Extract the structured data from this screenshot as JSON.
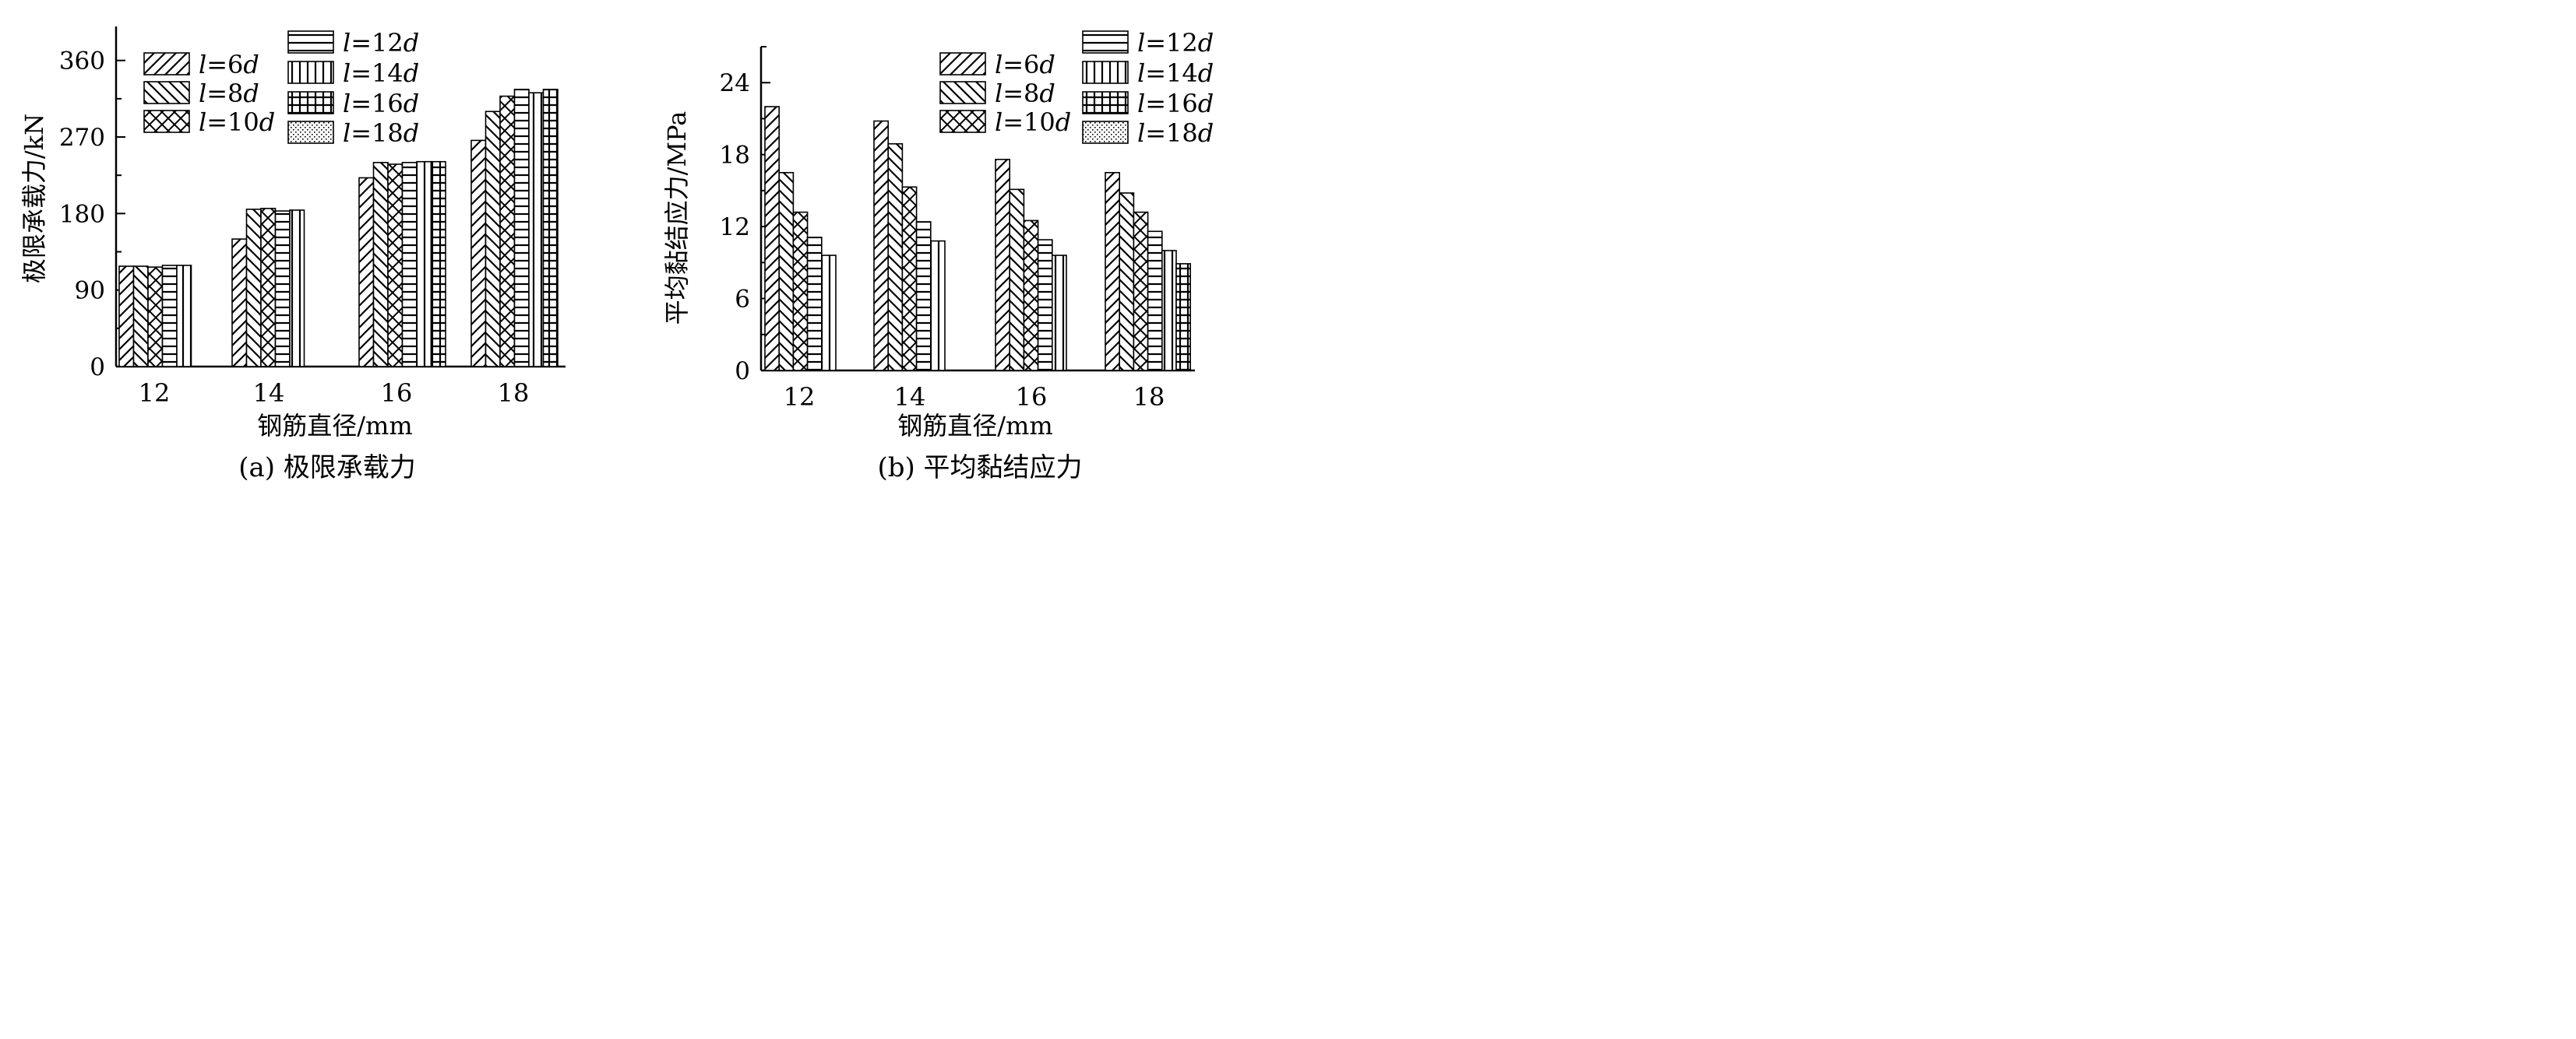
{
  "panels": [
    {
      "caption": "(a) 极限承载力",
      "chart_data": {
        "type": "bar",
        "categories": [
          "12",
          "14",
          "16",
          "18"
        ],
        "ylabel": "极限承载力/kN",
        "xlabel": "钢筋直径/mm",
        "ylim": [
          0,
          400
        ],
        "yticks": [
          0,
          90,
          180,
          270,
          360
        ],
        "grid": false,
        "legend_position": "top-left",
        "series": [
          {
            "name_l": "l",
            "name_rest": "=6",
            "name_d": "d",
            "pattern": "diag-right",
            "values": [
              118,
              150,
              222,
              266
            ]
          },
          {
            "name_l": "l",
            "name_rest": "=8",
            "name_d": "d",
            "pattern": "diag-left",
            "values": [
              118,
              185,
              240,
              300
            ]
          },
          {
            "name_l": "l",
            "name_rest": "=10",
            "name_d": "d",
            "pattern": "crosshatch",
            "values": [
              117,
              186,
              238,
              318
            ]
          },
          {
            "name_l": "l",
            "name_rest": "=12",
            "name_d": "d",
            "pattern": "horizontal",
            "values": [
              119,
              183,
              240,
              326
            ]
          },
          {
            "name_l": "l",
            "name_rest": "=14",
            "name_d": "d",
            "pattern": "vertical",
            "values": [
              119,
              184,
              241,
              322
            ]
          },
          {
            "name_l": "l",
            "name_rest": "=16",
            "name_d": "d",
            "pattern": "grid",
            "values": [
              null,
              null,
              241,
              326
            ]
          },
          {
            "name_l": "l",
            "name_rest": "=18",
            "name_d": "d",
            "pattern": "dots",
            "values": [
              null,
              null,
              null,
              null
            ]
          }
        ]
      }
    },
    {
      "caption": "(b) 平均黏结应力",
      "chart_data": {
        "type": "bar",
        "categories": [
          "12",
          "14",
          "16",
          "18"
        ],
        "ylabel": "平均黏结应力/MPa",
        "xlabel": "钢筋直径/mm",
        "ylim": [
          0,
          27
        ],
        "yticks": [
          0,
          6,
          12,
          18,
          24
        ],
        "grid": false,
        "legend_position": "top-right",
        "series": [
          {
            "name_l": "l",
            "name_rest": "=6",
            "name_d": "d",
            "pattern": "diag-right",
            "values": [
              22.0,
              20.8,
              17.6,
              16.5
            ]
          },
          {
            "name_l": "l",
            "name_rest": "=8",
            "name_d": "d",
            "pattern": "diag-left",
            "values": [
              16.5,
              18.9,
              15.1,
              14.8
            ]
          },
          {
            "name_l": "l",
            "name_rest": "=10",
            "name_d": "d",
            "pattern": "crosshatch",
            "values": [
              13.2,
              15.3,
              12.5,
              13.2
            ]
          },
          {
            "name_l": "l",
            "name_rest": "=12",
            "name_d": "d",
            "pattern": "horizontal",
            "values": [
              11.1,
              12.4,
              10.9,
              11.6
            ]
          },
          {
            "name_l": "l",
            "name_rest": "=14",
            "name_d": "d",
            "pattern": "vertical",
            "values": [
              9.6,
              10.8,
              9.6,
              10.0
            ]
          },
          {
            "name_l": "l",
            "name_rest": "=16",
            "name_d": "d",
            "pattern": "grid",
            "values": [
              null,
              null,
              null,
              8.9
            ]
          },
          {
            "name_l": "l",
            "name_rest": "=18",
            "name_d": "d",
            "pattern": "dots",
            "values": [
              null,
              null,
              null,
              null
            ]
          }
        ]
      }
    }
  ]
}
